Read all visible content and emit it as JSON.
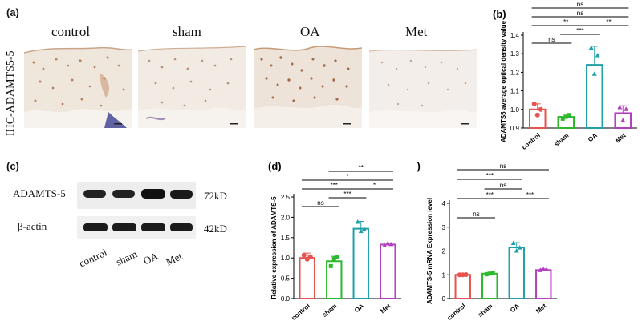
{
  "panel_a": {
    "label": "(a)",
    "row_label": "IHC-ADAMTS5-5",
    "groups": [
      "control",
      "sham",
      "OA",
      "Met"
    ]
  },
  "panel_c": {
    "label": "(c)",
    "rows": [
      {
        "name": "ADAMTS-5",
        "size": "72kD"
      },
      {
        "name": "β-actin",
        "size": "42kD"
      }
    ],
    "lanes": [
      "control",
      "sham",
      "OA",
      "Met"
    ]
  },
  "colors": {
    "control": "#e8524f",
    "sham": "#2eb82e",
    "OA": "#1f9fa8",
    "Met": "#b13fc0"
  },
  "chart_data": [
    {
      "id": "b",
      "panel_label": "(b)",
      "type": "bar",
      "categories": [
        "control",
        "sham",
        "OA",
        "Met"
      ],
      "values": [
        1.0,
        0.96,
        1.24,
        0.98
      ],
      "errors": [
        0.03,
        0.01,
        0.1,
        0.04
      ],
      "points": [
        [
          1.03,
          0.97,
          1.0
        ],
        [
          0.95,
          0.96,
          0.97
        ],
        [
          1.33,
          1.19,
          1.29
        ],
        [
          1.01,
          0.94,
          1.0
        ]
      ],
      "ylabel": "ADAMTS5 average optical density value",
      "ylim": [
        0.9,
        1.4
      ],
      "yticks": [
        "0.9",
        "1.0",
        "1.1",
        "1.2",
        "1.3",
        "1.4"
      ],
      "comparisons": [
        {
          "from": 0,
          "to": 3,
          "label": "ns"
        },
        {
          "from": 0,
          "to": 3,
          "label": "ns"
        },
        {
          "from": 0,
          "to": 2,
          "label": "**"
        },
        {
          "from": 2,
          "to": 3,
          "label": "**"
        },
        {
          "from": 1,
          "to": 2,
          "label": "***"
        },
        {
          "from": 0,
          "to": 1,
          "label": "ns"
        }
      ]
    },
    {
      "id": "d",
      "panel_label": "(d)",
      "type": "bar",
      "categories": [
        "control",
        "sham",
        "OA",
        "Met"
      ],
      "values": [
        1.0,
        0.92,
        1.72,
        1.33
      ],
      "errors": [
        0.12,
        0.12,
        0.18,
        0.04
      ],
      "points": [
        [
          1.07,
          0.97,
          1.03
        ],
        [
          0.8,
          0.98,
          1.02
        ],
        [
          1.88,
          1.65,
          1.7
        ],
        [
          1.3,
          1.35,
          1.33
        ]
      ],
      "ylabel": "Relative expression of ADAMTS-5",
      "ylim": [
        0,
        2.5
      ],
      "yticks": [
        "0.0",
        "0.5",
        "1.0",
        "1.5",
        "2.0",
        "2.5"
      ],
      "comparisons": [
        {
          "from": 1,
          "to": 3,
          "label": "**"
        },
        {
          "from": 0,
          "to": 3,
          "label": "*"
        },
        {
          "from": 0,
          "to": 2,
          "label": "***"
        },
        {
          "from": 2,
          "to": 3,
          "label": "*"
        },
        {
          "from": 1,
          "to": 2,
          "label": "***"
        },
        {
          "from": 0,
          "to": 1,
          "label": "ns"
        }
      ]
    },
    {
      "id": "e",
      "panel_label": "(e)",
      "type": "bar",
      "categories": [
        "control",
        "sham",
        "OA",
        "Met"
      ],
      "values": [
        1.0,
        1.05,
        2.15,
        1.2
      ],
      "errors": [
        0.02,
        0.05,
        0.2,
        0.05
      ],
      "points": [
        [
          1.0,
          1.0,
          1.01
        ],
        [
          1.02,
          1.05,
          1.08
        ],
        [
          2.32,
          2.0,
          2.13
        ],
        [
          1.18,
          1.22,
          1.21
        ]
      ],
      "ylabel": "ADAMTS-5 mRNA Expression level",
      "ylim": [
        0,
        4
      ],
      "yticks": [
        "0",
        "1",
        "2",
        "3",
        "4"
      ],
      "comparisons": [
        {
          "from": 0,
          "to": 3,
          "label": "ns"
        },
        {
          "from": 0,
          "to": 2,
          "label": "***"
        },
        {
          "from": 1,
          "to": 2,
          "label": "ns"
        },
        {
          "from": 0,
          "to": 2,
          "label": "***"
        },
        {
          "from": 2,
          "to": 3,
          "label": "***"
        },
        {
          "from": 0,
          "to": 1,
          "label": "ns"
        }
      ]
    }
  ]
}
